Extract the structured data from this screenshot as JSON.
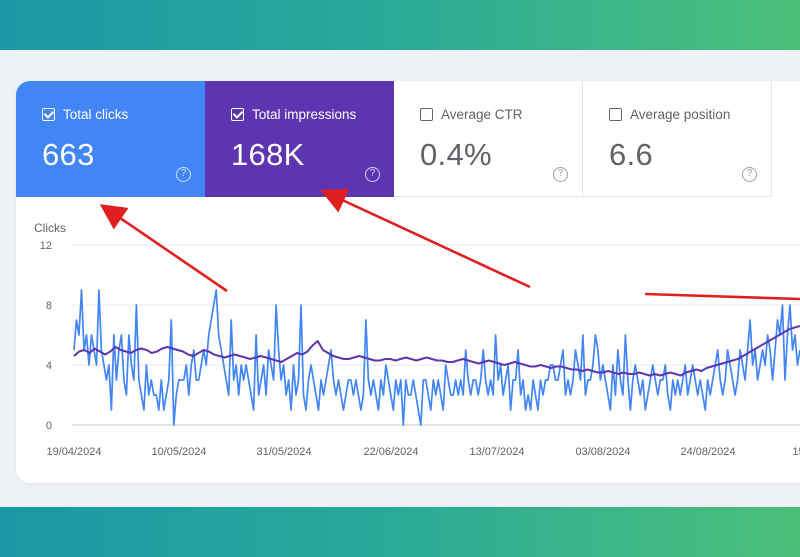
{
  "cards": [
    {
      "label": "Total clicks",
      "value": "663",
      "checked": true
    },
    {
      "label": "Total impressions",
      "value": "168K",
      "checked": true
    },
    {
      "label": "Average CTR",
      "value": "0.4%",
      "checked": false
    },
    {
      "label": "Average position",
      "value": "6.6",
      "checked": false
    }
  ],
  "help_glyph": "?",
  "colors": {
    "clicks": "#4285f4",
    "impressions": "#5e35b1",
    "arrow": "#e02020"
  },
  "chart_data": {
    "type": "line",
    "ylabel": "Clicks",
    "ylim": [
      0,
      12
    ],
    "yticks": [
      0,
      4,
      8,
      12
    ],
    "xticks": [
      "19/04/2024",
      "10/05/2024",
      "31/05/2024",
      "22/06/2024",
      "13/07/2024",
      "03/08/2024",
      "24/08/2024",
      "15/"
    ],
    "series": [
      {
        "name": "Clicks",
        "values": [
          5,
          7,
          6,
          9,
          5,
          6,
          4,
          6,
          5,
          4,
          9,
          5,
          4,
          3,
          4,
          1,
          6,
          3,
          5,
          6,
          3,
          2,
          6,
          4,
          3,
          8,
          3,
          2,
          1,
          4,
          2,
          3,
          2,
          2,
          1,
          3,
          1,
          2,
          3,
          7,
          0,
          2,
          3,
          3,
          3,
          4,
          2,
          4,
          5,
          3,
          3,
          4,
          5,
          4,
          6,
          7,
          8,
          9,
          6,
          5,
          4,
          3,
          2,
          7,
          3,
          4,
          2,
          4,
          3,
          4,
          3,
          2,
          1,
          6,
          2,
          3,
          4,
          2,
          5,
          4,
          3,
          8,
          5,
          3,
          4,
          2,
          3,
          1,
          4,
          2,
          3,
          8,
          2,
          1,
          3,
          4,
          3,
          2,
          1,
          3,
          2,
          3,
          4,
          5,
          3,
          2,
          3,
          2,
          1,
          2,
          3,
          3,
          2,
          3,
          2,
          1,
          2,
          7,
          3,
          2,
          3,
          2,
          1,
          3,
          2,
          4,
          3,
          2,
          1,
          3,
          2,
          3,
          0,
          3,
          2,
          2,
          3,
          2,
          1,
          0,
          3,
          3,
          2,
          1,
          3,
          2,
          3,
          2,
          1,
          4,
          3,
          2,
          2,
          3,
          2,
          3,
          2,
          5,
          3,
          2,
          3,
          3,
          2,
          3,
          5,
          3,
          2,
          3,
          2,
          6,
          3,
          4,
          2,
          3,
          4,
          1,
          3,
          3,
          5,
          2,
          3,
          1,
          2,
          1,
          3,
          2,
          1,
          3,
          2,
          3,
          3,
          4,
          4,
          3,
          3,
          4,
          5,
          2,
          3,
          2,
          3,
          5,
          4,
          3,
          6,
          2,
          3,
          3,
          4,
          6,
          5,
          3,
          4,
          3,
          2,
          1,
          4,
          2,
          5,
          3,
          2,
          6,
          3,
          1,
          3,
          4,
          3,
          2,
          3,
          1,
          2,
          3,
          4,
          3,
          2,
          3,
          3,
          4,
          2,
          1,
          3,
          2,
          3,
          2,
          3,
          4,
          2,
          3,
          4,
          3,
          2,
          3,
          2,
          1,
          3,
          2,
          3,
          4,
          5,
          3,
          2,
          3,
          5,
          4,
          3,
          2,
          3,
          5,
          4,
          3,
          5,
          7,
          4,
          5,
          3,
          4,
          5,
          4,
          6,
          5,
          3,
          5,
          7,
          6,
          8,
          3,
          6,
          8,
          5,
          6,
          4,
          5
        ]
      },
      {
        "name": "Impressions",
        "values": [
          4.6,
          4.9,
          5.0,
          4.8,
          5.1,
          4.9,
          4.7,
          4.9,
          5.2,
          5.0,
          4.9,
          4.8,
          5.0,
          5.1,
          5.0,
          4.8,
          4.9,
          5.1,
          5.2,
          5.1,
          5.0,
          4.9,
          4.7,
          4.6,
          4.8,
          5.0,
          4.9,
          4.7,
          4.6,
          4.5,
          4.6,
          4.7,
          4.6,
          4.5,
          4.4,
          4.5,
          4.6,
          4.5,
          4.4,
          4.3,
          4.2,
          4.4,
          4.6,
          4.8,
          4.7,
          4.9,
          5.3,
          5.6,
          5.0,
          4.8,
          4.6,
          4.5,
          4.4,
          4.4,
          4.5,
          4.6,
          4.5,
          4.4,
          4.3,
          4.3,
          4.4,
          4.4,
          4.3,
          4.4,
          4.5,
          4.4,
          4.3,
          4.4,
          4.5,
          4.4,
          4.3,
          4.3,
          4.2,
          4.2,
          4.3,
          4.4,
          4.3,
          4.2,
          4.1,
          4.2,
          4.3,
          4.2,
          4.1,
          4.0,
          4.1,
          4.2,
          4.1,
          4.0,
          3.9,
          3.9,
          4.0,
          3.9,
          3.8,
          3.9,
          3.9,
          3.8,
          3.7,
          3.7,
          3.6,
          3.7,
          3.6,
          3.5,
          3.5,
          3.6,
          3.5,
          3.4,
          3.5,
          3.4,
          3.4,
          3.5,
          3.4,
          3.3,
          3.4,
          3.3,
          3.4,
          3.5,
          3.4,
          3.3,
          3.5,
          3.6,
          3.7,
          3.6,
          3.8,
          3.9,
          4.0,
          4.1,
          4.2,
          4.3,
          4.4,
          4.6,
          4.8,
          5.0,
          5.2,
          5.4,
          5.6,
          5.8,
          6.0,
          6.2,
          6.4,
          6.5,
          6.6
        ]
      }
    ]
  }
}
